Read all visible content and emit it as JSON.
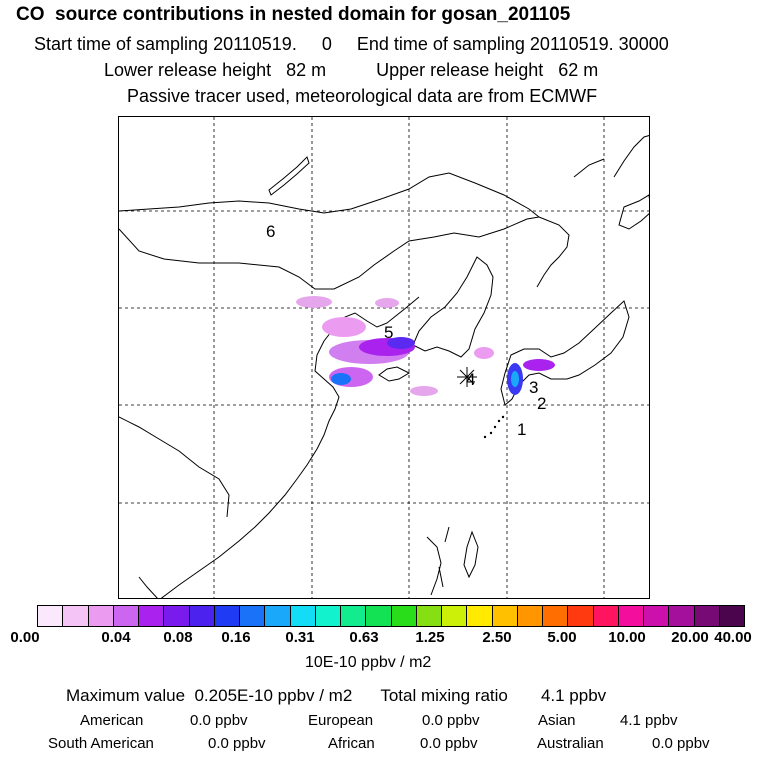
{
  "header": {
    "title": "CO  source contributions in nested domain for gosan_201105",
    "sampling": "Start time of sampling 20110519.     0     End time of sampling 20110519. 30000",
    "release": "Lower release height   82 m          Upper release height   62 m",
    "tracer": "Passive tracer used, meteorological data are from ECMWF"
  },
  "map": {
    "region_labels": [
      "1",
      "2",
      "3",
      "4",
      "5",
      "6"
    ],
    "receptor_marker": "asterisk-icon"
  },
  "legend": {
    "colors": [
      "#fce8fc",
      "#f4c4f6",
      "#ec9cf0",
      "#cc66f0",
      "#aa22ee",
      "#7a1bee",
      "#4b22ee",
      "#1f3bf4",
      "#1a72f8",
      "#1aa8fb",
      "#13dcf6",
      "#12f2cc",
      "#12ec8e",
      "#12e254",
      "#2add1a",
      "#86df12",
      "#ccf008",
      "#ffea00",
      "#ffc000",
      "#ff9600",
      "#ff6e00",
      "#ff3a10",
      "#ff1460",
      "#f40e9e",
      "#cc10ac",
      "#a40f9c",
      "#780a76",
      "#4a054c"
    ],
    "ticks": [
      "0.00",
      "0.04",
      "0.08",
      "0.16",
      "0.31",
      "0.63",
      "1.25",
      "2.50",
      "5.00",
      "10.00",
      "20.00",
      "40.00"
    ],
    "unit": "10E-10 ppbv / m2"
  },
  "summary": {
    "max_line": "Maximum value  0.205E-10 ppbv / m2      Total mixing ratio       4.1 ppbv",
    "american_label": "American",
    "american_value": "0.0 ppbv",
    "european_label": "European",
    "european_value": "0.0 ppbv",
    "asian_label": "Asian",
    "asian_value": "4.1 ppbv",
    "south_american_label": "South American",
    "south_american_value": "0.0 ppbv",
    "african_label": "African",
    "african_value": "0.0 ppbv",
    "australian_label": "Australian",
    "australian_value": "0.0 ppbv"
  }
}
